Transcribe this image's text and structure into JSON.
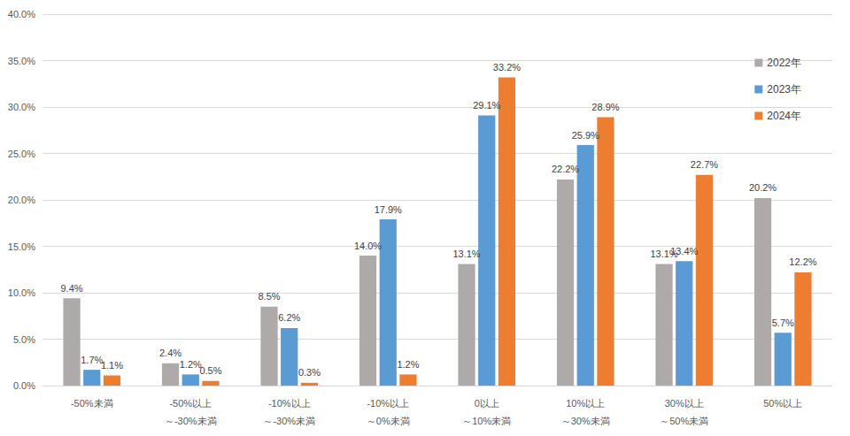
{
  "chart_data": {
    "type": "bar",
    "categories": [
      "-50%未満",
      "-50%以上\n～-30%未満",
      "-10%以上\n～-30%未満",
      "-10%以上\n～0%未満",
      "0以上\n～10%未満",
      "10%以上\n～30%未満",
      "30%以上\n～50%未満",
      "50%以上"
    ],
    "series": [
      {
        "name": "2022年",
        "color": "#aeaaaa",
        "values": [
          9.4,
          2.4,
          8.5,
          14.0,
          13.1,
          22.2,
          13.1,
          20.2
        ],
        "value_labels": [
          "9.4%",
          "2.4%",
          "8.5%",
          "14.0%",
          "13.1%",
          "22.2%",
          "13.1%",
          "20.2%"
        ]
      },
      {
        "name": "2023年",
        "color": "#5b9bd5",
        "values": [
          1.7,
          1.2,
          6.2,
          17.9,
          29.1,
          25.9,
          13.4,
          5.7
        ],
        "value_labels": [
          "1.7%",
          "1.2%",
          "6.2%",
          "17.9%",
          "29.1%",
          "25.9%",
          "13.4%",
          "5.7%"
        ]
      },
      {
        "name": "2024年",
        "color": "#ed7d31",
        "values": [
          1.1,
          0.5,
          0.3,
          1.2,
          33.2,
          28.9,
          22.7,
          12.2
        ],
        "value_labels": [
          "1.1%",
          "0.5%",
          "0.3%",
          "1.2%",
          "33.2%",
          "28.9%",
          "22.7%",
          "12.2%"
        ]
      }
    ],
    "ylim": [
      0,
      40
    ],
    "yticks": [
      {
        "value": 0,
        "label": "0.0%"
      },
      {
        "value": 5,
        "label": "5.0%"
      },
      {
        "value": 10,
        "label": "10.0%"
      },
      {
        "value": 15,
        "label": "15.0%"
      },
      {
        "value": 20,
        "label": "20.0%"
      },
      {
        "value": 25,
        "label": "25.0%"
      },
      {
        "value": 30,
        "label": "30.0%"
      },
      {
        "value": 35,
        "label": "35.0%"
      },
      {
        "value": 40,
        "label": "40.0%"
      }
    ],
    "grid": true,
    "legend": "top-right",
    "data_labels": true
  }
}
